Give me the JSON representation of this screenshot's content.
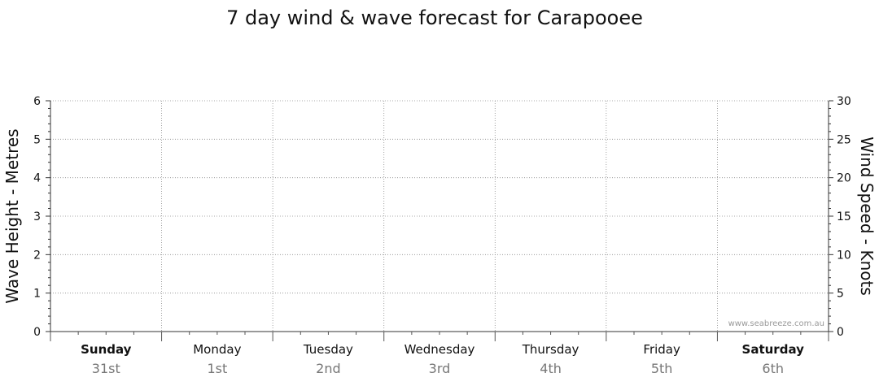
{
  "chart_data": {
    "type": "line",
    "title": "7 day wind & wave forecast for Carapooee",
    "ylabel_left": "Wave Height - Metres",
    "ylabel_right": "Wind Speed - Knots",
    "ylim_left": [
      0,
      6
    ],
    "ylim_right": [
      0,
      30
    ],
    "yticks_left": [
      0,
      1,
      2,
      3,
      4,
      5,
      6
    ],
    "yticks_right": [
      0,
      5,
      10,
      15,
      20,
      25,
      30
    ],
    "categories": [
      {
        "day": "Sunday",
        "date": "31st",
        "bold": true
      },
      {
        "day": "Monday",
        "date": "1st",
        "bold": false
      },
      {
        "day": "Tuesday",
        "date": "2nd",
        "bold": false
      },
      {
        "day": "Wednesday",
        "date": "3rd",
        "bold": false
      },
      {
        "day": "Thursday",
        "date": "4th",
        "bold": false
      },
      {
        "day": "Friday",
        "date": "5th",
        "bold": false
      },
      {
        "day": "Saturday",
        "date": "6th",
        "bold": true
      }
    ],
    "series": [],
    "grid": true,
    "watermark": "www.seabreeze.com.au"
  }
}
